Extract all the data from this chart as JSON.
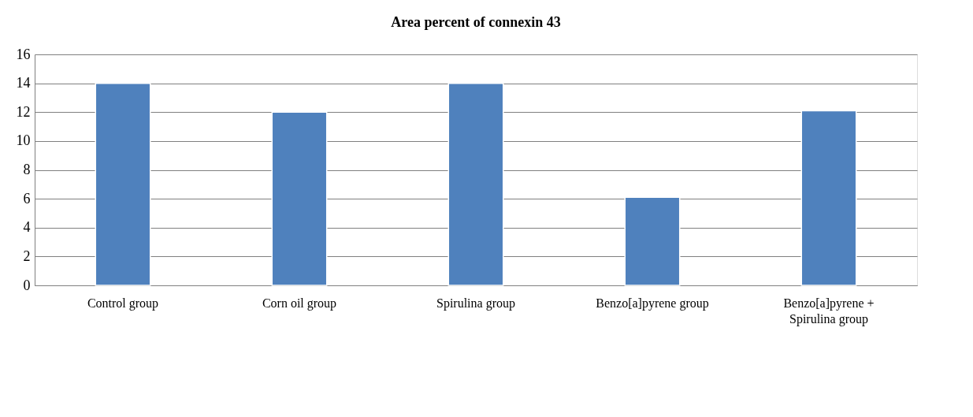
{
  "chart_data": {
    "type": "bar",
    "title": "Area percent of connexin 43",
    "categories": [
      "Control group",
      "Corn oil group",
      "Spirulina group",
      "Benzo[a]pyrene group",
      "Benzo[a]pyrene + Spirulina group"
    ],
    "values": [
      14,
      12,
      14,
      6.1,
      12.1
    ],
    "color": "#4f81bd",
    "ylim": [
      0,
      16
    ],
    "yticks": [
      0,
      2,
      4,
      6,
      8,
      10,
      12,
      14,
      16
    ],
    "grid": "y"
  }
}
